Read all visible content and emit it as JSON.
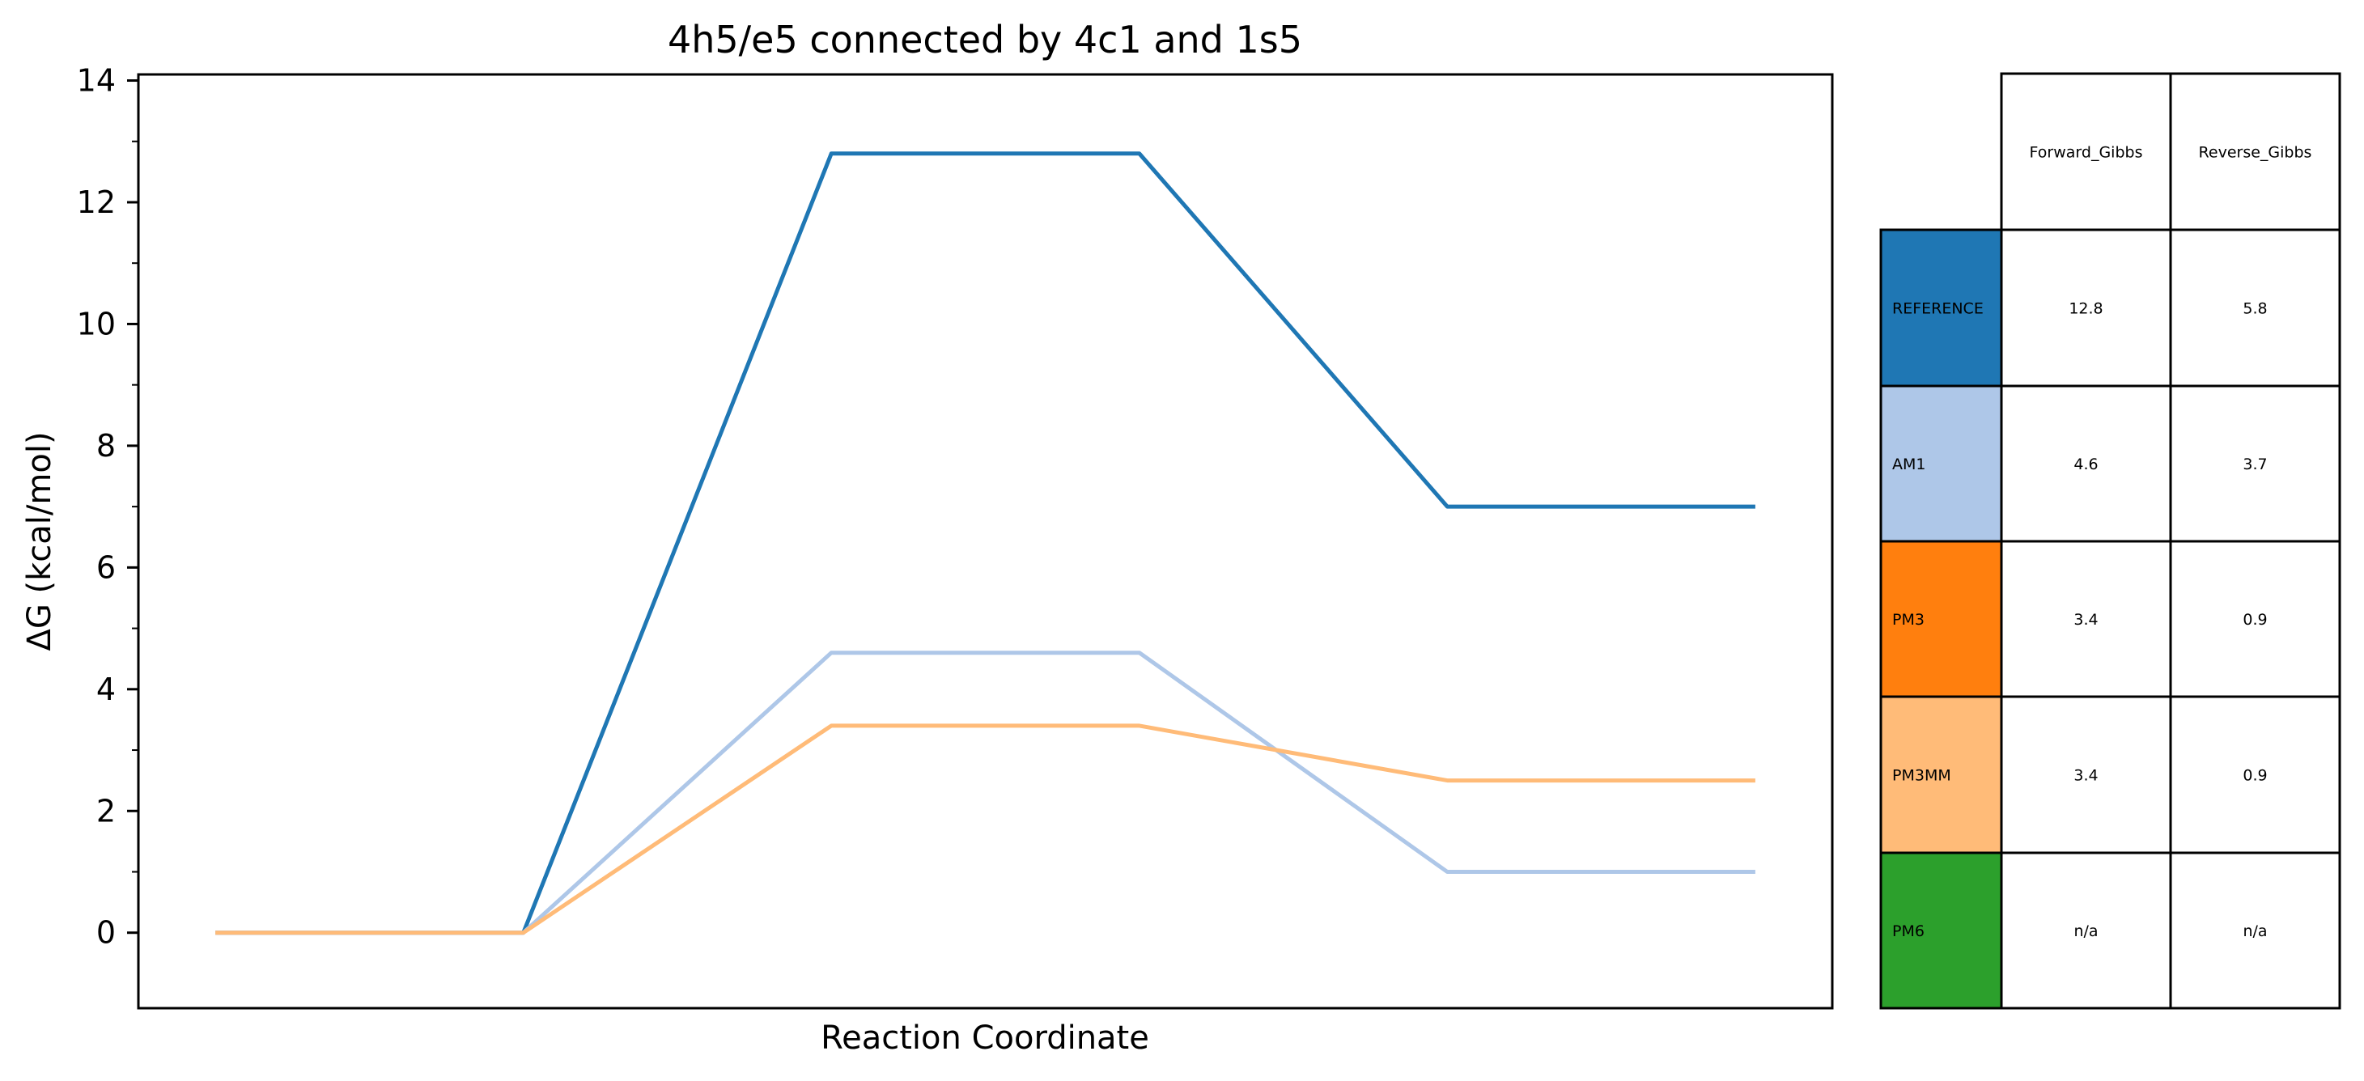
{
  "chart_data": {
    "type": "line",
    "title": "4h5/e5 connected by 4c1 and 1s5",
    "xlabel": "Reaction Coordinate",
    "ylabel": "ΔG (kcal/mol)",
    "ylim": [
      -1.24,
      14.1
    ],
    "y_major_ticks": [
      0,
      2,
      4,
      6,
      8,
      10,
      12,
      14
    ],
    "y_minor_ticks": [
      1,
      3,
      5,
      7,
      9,
      11,
      13
    ],
    "xlim": [
      0,
      11
    ],
    "grid": false,
    "legend": "none",
    "series": [
      {
        "color": "#1f77b4",
        "x": [
          0.5,
          2.5,
          4.5,
          6.5,
          8.5,
          10.5
        ],
        "y": [
          0,
          0,
          12.8,
          12.8,
          7.0,
          7.0
        ]
      },
      {
        "color": "#aec7e8",
        "x": [
          0.5,
          2.5,
          4.5,
          6.5,
          8.5,
          10.5
        ],
        "y": [
          0,
          0,
          4.6,
          4.6,
          1.0,
          1.0
        ]
      },
      {
        "color": "#ffbb78",
        "x": [
          0.5,
          2.5,
          4.5,
          6.5,
          8.5,
          10.5
        ],
        "y": [
          0,
          0,
          3.4,
          3.4,
          2.5,
          2.5
        ]
      }
    ],
    "table": {
      "columns": [
        "Forward_Gibbs",
        "Reverse_Gibbs"
      ],
      "rows": [
        {
          "label": "REFERENCE",
          "color": "#1f77b4",
          "values": [
            "12.8",
            "5.8"
          ]
        },
        {
          "label": "AM1",
          "color": "#aec7e8",
          "values": [
            "4.6",
            "3.7"
          ]
        },
        {
          "label": "PM3",
          "color": "#ff7f0e",
          "values": [
            "3.4",
            "0.9"
          ]
        },
        {
          "label": "PM3MM",
          "color": "#ffbb78",
          "values": [
            "3.4",
            "0.9"
          ]
        },
        {
          "label": "PM6",
          "color": "#2ca02c",
          "values": [
            "n/a",
            "n/a"
          ]
        }
      ]
    }
  }
}
